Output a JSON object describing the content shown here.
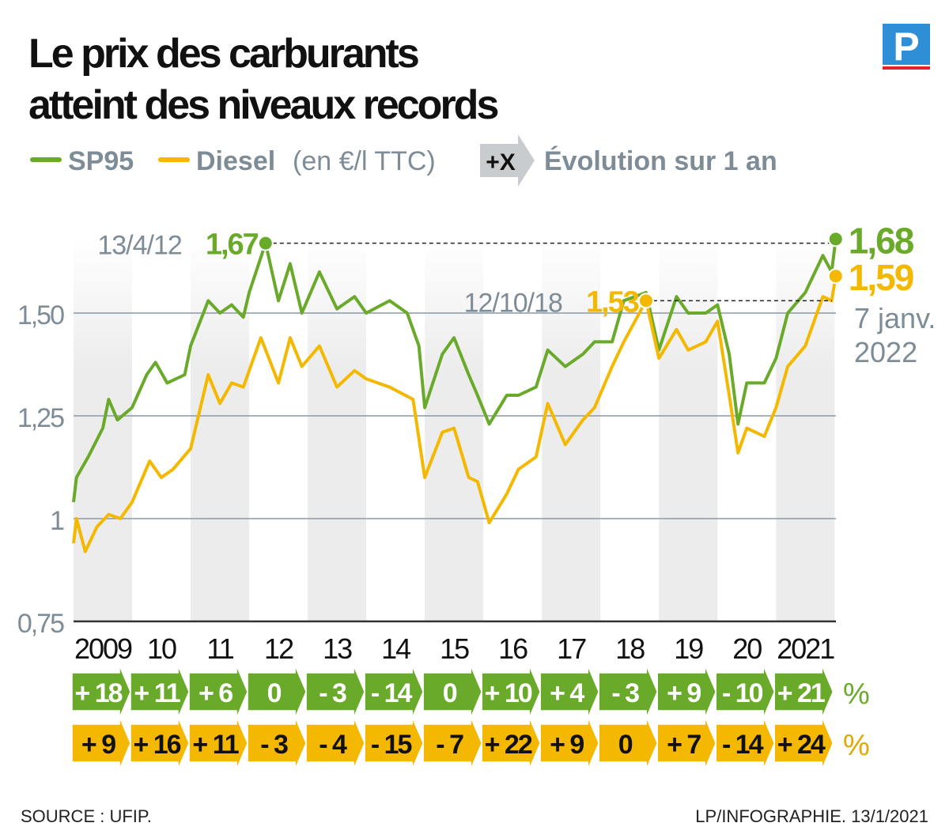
{
  "title_lines": [
    "Le prix des carburants",
    "atteint des niveaux records"
  ],
  "logo_letter": "P",
  "legend": {
    "sp95": "SP95",
    "diesel": "Diesel",
    "unit": "(en €/l TTC)",
    "badge": "+X",
    "evolution": "Évolution sur 1 an"
  },
  "colors": {
    "sp95": "#6aaa2a",
    "diesel": "#f5b800",
    "text_gray": "#7d8c96",
    "grid": "#8a9aa6",
    "band": "#ececec",
    "logo_blue": "#2f8fd6",
    "logo_red": "#e2232a"
  },
  "chart_data": {
    "type": "line",
    "ylim": [
      0.75,
      1.7
    ],
    "yticks": [
      {
        "v": 0.75,
        "label": "0,75"
      },
      {
        "v": 1,
        "label": "1"
      },
      {
        "v": 1.25,
        "label": "1,25"
      },
      {
        "v": 1.5,
        "label": "1,50"
      }
    ],
    "xlim": [
      2009,
      2022.05
    ],
    "xtick_labels": [
      "2009",
      "10",
      "11",
      "12",
      "13",
      "14",
      "15",
      "16",
      "17",
      "18",
      "19",
      "20",
      "2021"
    ],
    "grid": "horizontal",
    "series": [
      {
        "name": "SP95",
        "color": "#6aaa2a",
        "x": [
          2009.0,
          2009.05,
          2009.25,
          2009.5,
          2009.6,
          2009.75,
          2010.0,
          2010.25,
          2010.4,
          2010.6,
          2010.9,
          2011.0,
          2011.3,
          2011.5,
          2011.7,
          2011.9,
          2012.0,
          2012.28,
          2012.5,
          2012.7,
          2012.9,
          2013.2,
          2013.5,
          2013.8,
          2014.0,
          2014.4,
          2014.7,
          2014.9,
          2015.0,
          2015.3,
          2015.5,
          2015.75,
          2015.9,
          2016.1,
          2016.4,
          2016.6,
          2016.9,
          2017.1,
          2017.4,
          2017.7,
          2017.9,
          2018.2,
          2018.4,
          2018.78,
          2019.0,
          2019.3,
          2019.5,
          2019.8,
          2020.0,
          2020.2,
          2020.35,
          2020.5,
          2020.8,
          2021.0,
          2021.2,
          2021.5,
          2021.8,
          2021.95,
          2022.02
        ],
        "values": [
          1.04,
          1.1,
          1.15,
          1.22,
          1.29,
          1.24,
          1.27,
          1.35,
          1.38,
          1.33,
          1.35,
          1.42,
          1.53,
          1.5,
          1.52,
          1.49,
          1.55,
          1.67,
          1.53,
          1.62,
          1.5,
          1.6,
          1.51,
          1.54,
          1.5,
          1.53,
          1.5,
          1.42,
          1.27,
          1.4,
          1.44,
          1.35,
          1.3,
          1.23,
          1.3,
          1.3,
          1.32,
          1.41,
          1.37,
          1.4,
          1.43,
          1.43,
          1.53,
          1.55,
          1.41,
          1.54,
          1.5,
          1.5,
          1.52,
          1.4,
          1.23,
          1.33,
          1.33,
          1.39,
          1.5,
          1.55,
          1.64,
          1.6,
          1.68
        ]
      },
      {
        "name": "Diesel",
        "color": "#f5b800",
        "x": [
          2009.0,
          2009.05,
          2009.2,
          2009.4,
          2009.6,
          2009.8,
          2010.0,
          2010.3,
          2010.5,
          2010.7,
          2011.0,
          2011.3,
          2011.5,
          2011.7,
          2011.9,
          2012.2,
          2012.5,
          2012.7,
          2012.9,
          2013.2,
          2013.5,
          2013.8,
          2014.0,
          2014.4,
          2014.8,
          2015.0,
          2015.3,
          2015.5,
          2015.75,
          2015.9,
          2016.1,
          2016.4,
          2016.6,
          2016.9,
          2017.1,
          2017.4,
          2017.7,
          2017.9,
          2018.2,
          2018.4,
          2018.78,
          2019.0,
          2019.3,
          2019.5,
          2019.8,
          2020.0,
          2020.2,
          2020.35,
          2020.5,
          2020.8,
          2021.0,
          2021.2,
          2021.5,
          2021.8,
          2021.95,
          2022.02
        ],
        "values": [
          0.94,
          1.0,
          0.92,
          0.98,
          1.01,
          1.0,
          1.04,
          1.14,
          1.1,
          1.12,
          1.17,
          1.35,
          1.28,
          1.33,
          1.32,
          1.44,
          1.33,
          1.44,
          1.37,
          1.42,
          1.32,
          1.36,
          1.34,
          1.32,
          1.29,
          1.1,
          1.21,
          1.22,
          1.1,
          1.09,
          0.99,
          1.06,
          1.12,
          1.15,
          1.28,
          1.18,
          1.24,
          1.27,
          1.37,
          1.43,
          1.53,
          1.39,
          1.46,
          1.41,
          1.43,
          1.48,
          1.3,
          1.16,
          1.22,
          1.2,
          1.27,
          1.37,
          1.42,
          1.54,
          1.53,
          1.59
        ]
      }
    ],
    "annotations": [
      {
        "series": "SP95",
        "x": 2012.28,
        "y": 1.67,
        "date": "13/4/12",
        "value": "1,67"
      },
      {
        "series": "Diesel",
        "x": 2018.78,
        "y": 1.53,
        "date": "12/10/18",
        "value": "1,53"
      },
      {
        "series": "SP95",
        "x": 2022.02,
        "y": 1.68,
        "value": "1,68"
      },
      {
        "series": "Diesel",
        "x": 2022.02,
        "y": 1.59,
        "value": "1,59"
      }
    ],
    "end_date_lines": [
      "7 janv.",
      "2022"
    ],
    "yearly_change": {
      "unit": "%",
      "sp95": [
        "+ 18",
        "+ 11",
        "+ 6",
        "0",
        "- 3",
        "- 14",
        "0",
        "+ 10",
        "+ 4",
        "- 3",
        "+ 9",
        "- 10",
        "+ 21"
      ],
      "diesel": [
        "+ 9",
        "+ 16",
        "+ 11",
        "- 3",
        "- 4",
        "- 15",
        "- 7",
        "+ 22",
        "+ 9",
        "0",
        "+ 7",
        "- 14",
        "+ 24"
      ]
    }
  },
  "footer": {
    "source": "SOURCE : UFIP.",
    "credit": "LP/INFOGRAPHIE.  13/1/2021"
  }
}
